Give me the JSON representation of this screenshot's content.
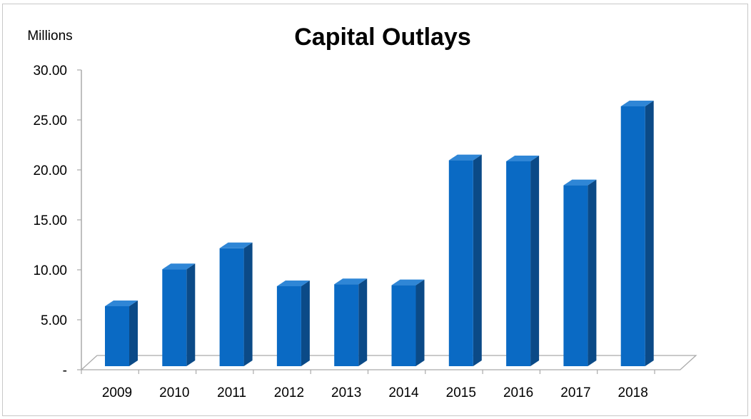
{
  "chart_data": {
    "type": "bar",
    "title": "Capital Outlays",
    "unit_label": "Millions",
    "categories": [
      "2009",
      "2010",
      "2011",
      "2012",
      "2013",
      "2014",
      "2015",
      "2016",
      "2017",
      "2018"
    ],
    "values": [
      6.0,
      9.7,
      11.8,
      8.0,
      8.2,
      8.1,
      20.6,
      20.5,
      18.1,
      26.0
    ],
    "ylim": [
      0,
      30
    ],
    "yticks": [
      0,
      5,
      10,
      15,
      20,
      25,
      30
    ],
    "ytick_labels": [
      "-",
      "5.00",
      "10.00",
      "15.00",
      "20.00",
      "25.00",
      "30.00"
    ],
    "grid": false,
    "legend": "none",
    "colors": {
      "bar_front": "#0a6ac4",
      "bar_side": "#0b4a87",
      "bar_top": "#2f86d6",
      "axis": "#aaaaaa"
    }
  }
}
